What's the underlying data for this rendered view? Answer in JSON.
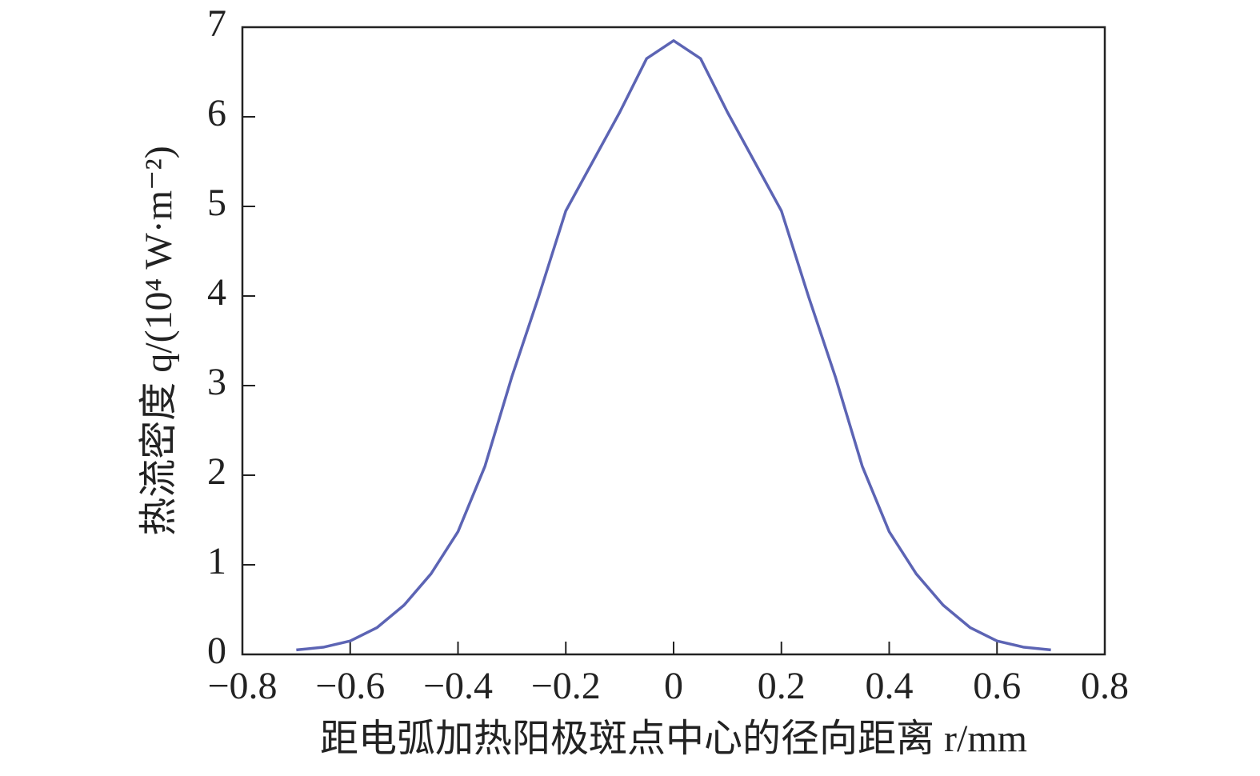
{
  "chart_data": {
    "type": "line",
    "xlabel": "距电弧加热阳极斑点中心的径向距离 r/mm",
    "ylabel": "热流密度 q/(10⁴ W·m⁻²)",
    "x": [
      -0.7,
      -0.65,
      -0.6,
      -0.55,
      -0.5,
      -0.45,
      -0.4,
      -0.35,
      -0.3,
      -0.25,
      -0.2,
      -0.15,
      -0.1,
      -0.05,
      0,
      0.05,
      0.1,
      0.15,
      0.2,
      0.25,
      0.3,
      0.35,
      0.4,
      0.45,
      0.5,
      0.55,
      0.6,
      0.65,
      0.7
    ],
    "series": [
      {
        "color": "#5c64b4",
        "values": [
          0.05,
          0.08,
          0.15,
          0.3,
          0.55,
          0.9,
          1.37,
          2.1,
          3.1,
          4.0,
          4.95,
          5.5,
          6.05,
          6.65,
          6.85,
          6.65,
          6.05,
          5.5,
          4.95,
          4.0,
          3.1,
          2.1,
          1.37,
          0.9,
          0.55,
          0.3,
          0.15,
          0.08,
          0.05
        ]
      }
    ],
    "xlim": [
      -0.8,
      0.8
    ],
    "xticks": [
      {
        "value": -0.8,
        "label": "−0.8"
      },
      {
        "value": -0.6,
        "label": "−0.6"
      },
      {
        "value": -0.4,
        "label": "−0.4"
      },
      {
        "value": -0.2,
        "label": "−0.2"
      },
      0,
      0.2,
      0.4,
      0.6,
      0.8
    ],
    "ylim": [
      0,
      7
    ],
    "yticks": [
      0,
      1,
      2,
      3,
      4,
      5,
      6,
      7
    ],
    "grid": false
  }
}
